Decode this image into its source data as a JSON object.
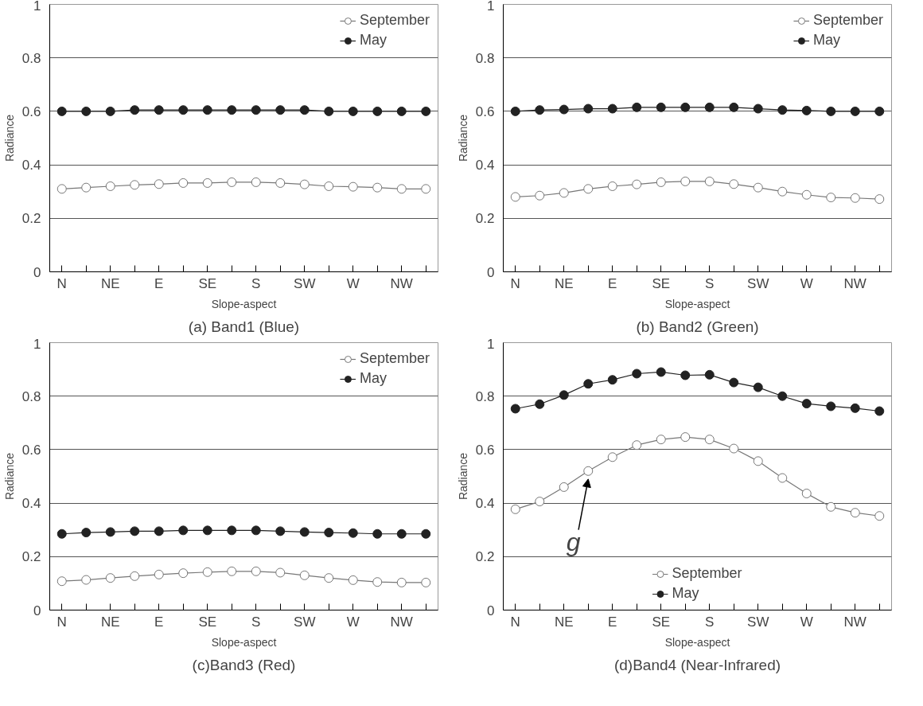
{
  "chart_data": [
    {
      "type": "line",
      "title": "(a) Band1 (Blue)",
      "xlabel": "Slope-aspect",
      "ylabel": "Radiance",
      "categories": [
        "N",
        null,
        "NE",
        null,
        "E",
        null,
        "SE",
        null,
        "S",
        null,
        "SW",
        null,
        "W",
        null,
        "NW",
        null
      ],
      "ylim": [
        0,
        1
      ],
      "yticks": [
        0,
        0.2,
        0.4,
        0.6,
        0.8,
        1
      ],
      "grid": "y",
      "legend": "top right",
      "marker": "circle",
      "line_style": "solid",
      "series": [
        {
          "name": "September",
          "color": "#777777",
          "values": [
            0.31,
            0.315,
            0.32,
            0.325,
            0.328,
            0.332,
            0.332,
            0.335,
            0.335,
            0.332,
            0.327,
            0.32,
            0.318,
            0.315,
            0.31,
            0.31
          ]
        },
        {
          "name": "May",
          "color": "#222222",
          "values": [
            0.6,
            0.6,
            0.6,
            0.605,
            0.605,
            0.605,
            0.605,
            0.605,
            0.605,
            0.605,
            0.605,
            0.6,
            0.6,
            0.6,
            0.6,
            0.6
          ]
        }
      ]
    },
    {
      "type": "line",
      "title": "(b) Band2 (Green)",
      "xlabel": "Slope-aspect",
      "ylabel": "Radiance",
      "categories": [
        "N",
        null,
        "NE",
        null,
        "E",
        null,
        "SE",
        null,
        "S",
        null,
        "SW",
        null,
        "W",
        null,
        "NW",
        null
      ],
      "ylim": [
        0,
        1
      ],
      "yticks": [
        0,
        0.2,
        0.4,
        0.6,
        0.8,
        1
      ],
      "grid": "y",
      "legend": "top right",
      "marker": "circle",
      "line_style": "solid",
      "series": [
        {
          "name": "September",
          "color": "#777777",
          "values": [
            0.28,
            0.285,
            0.295,
            0.31,
            0.32,
            0.327,
            0.335,
            0.338,
            0.338,
            0.328,
            0.315,
            0.3,
            0.288,
            0.278,
            0.276,
            0.272
          ]
        },
        {
          "name": "May",
          "color": "#222222",
          "values": [
            0.6,
            0.605,
            0.607,
            0.61,
            0.61,
            0.615,
            0.615,
            0.615,
            0.615,
            0.615,
            0.61,
            0.605,
            0.603,
            0.6,
            0.6,
            0.6
          ]
        }
      ]
    },
    {
      "type": "line",
      "title": "(c)Band3 (Red)",
      "xlabel": "Slope-aspect",
      "ylabel": "Radiance",
      "categories": [
        "N",
        null,
        "NE",
        null,
        "E",
        null,
        "SE",
        null,
        "S",
        null,
        "SW",
        null,
        "W",
        null,
        "NW",
        null
      ],
      "ylim": [
        0,
        1
      ],
      "yticks": [
        0,
        0.2,
        0.4,
        0.6,
        0.8,
        1
      ],
      "grid": "y",
      "legend": "top right",
      "marker": "circle",
      "line_style": "solid",
      "series": [
        {
          "name": "September",
          "color": "#777777",
          "values": [
            0.108,
            0.113,
            0.12,
            0.127,
            0.133,
            0.138,
            0.142,
            0.145,
            0.145,
            0.14,
            0.13,
            0.12,
            0.112,
            0.105,
            0.103,
            0.103
          ]
        },
        {
          "name": "May",
          "color": "#222222",
          "values": [
            0.285,
            0.29,
            0.292,
            0.295,
            0.295,
            0.298,
            0.298,
            0.298,
            0.298,
            0.295,
            0.292,
            0.29,
            0.288,
            0.285,
            0.285,
            0.285
          ]
        }
      ]
    },
    {
      "type": "line",
      "title": "(d)Band4 (Near-Infrared)",
      "xlabel": "Slope-aspect",
      "ylabel": "Radiance",
      "categories": [
        "N",
        null,
        "NE",
        null,
        "E",
        null,
        "SE",
        null,
        "S",
        null,
        "SW",
        null,
        "W",
        null,
        "NW",
        null
      ],
      "ylim": [
        0,
        1
      ],
      "yticks": [
        0,
        0.2,
        0.4,
        0.6,
        0.8,
        1
      ],
      "grid": "y",
      "legend": "bottom",
      "marker": "circle",
      "line_style": "solid",
      "annotations": [
        "g"
      ],
      "series": [
        {
          "name": "September",
          "color": "#777777",
          "values": [
            0.377,
            0.406,
            0.46,
            0.52,
            0.572,
            0.617,
            0.638,
            0.647,
            0.638,
            0.604,
            0.557,
            0.494,
            0.436,
            0.386,
            0.364,
            0.352
          ]
        },
        {
          "name": "May",
          "color": "#222222",
          "values": [
            0.753,
            0.77,
            0.804,
            0.846,
            0.861,
            0.884,
            0.89,
            0.878,
            0.88,
            0.851,
            0.833,
            0.8,
            0.772,
            0.762,
            0.755,
            0.744
          ]
        }
      ]
    }
  ]
}
